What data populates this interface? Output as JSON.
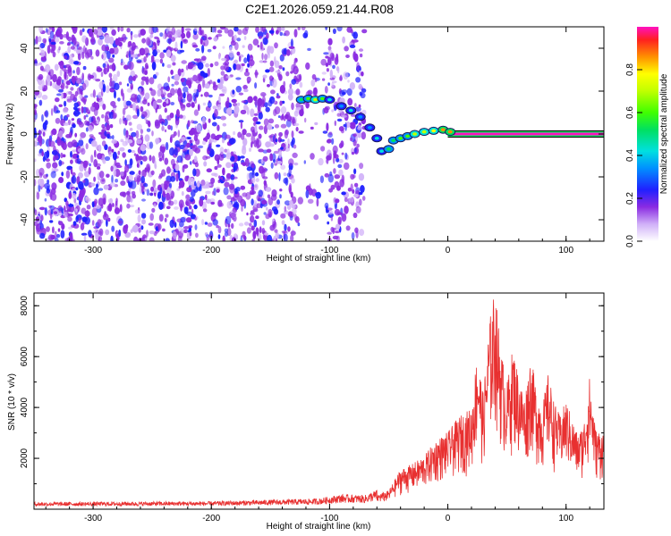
{
  "title": "C2E1.2026.059.21.44.R08",
  "chart_data": [
    {
      "type": "heatmap",
      "xlabel": "Height of straight line (km)",
      "ylabel": "Frequency (Hz)",
      "xlim": [
        -350,
        132
      ],
      "ylim": [
        -50,
        50
      ],
      "xticks": [
        -300,
        -200,
        -100,
        0,
        100
      ],
      "yticks": [
        -40,
        -20,
        0,
        20,
        40
      ],
      "colorbar": {
        "label": "Normalized spectral amplitude",
        "range": [
          0,
          1
        ],
        "ticks": [
          "0.0",
          "0.2",
          "0.4",
          "0.6",
          "0.8"
        ],
        "tick_values": [
          0,
          0.2,
          0.4,
          0.6,
          0.8
        ]
      },
      "signal_track": [
        {
          "x": -124,
          "y": 16,
          "amp": 0.45
        },
        {
          "x": -118,
          "y": 16.5,
          "amp": 0.55
        },
        {
          "x": -112,
          "y": 16,
          "amp": 0.7
        },
        {
          "x": -106,
          "y": 16.5,
          "amp": 0.6
        },
        {
          "x": -100,
          "y": 16,
          "amp": 0.4
        },
        {
          "x": -90,
          "y": 13,
          "amp": 0.3
        },
        {
          "x": -82,
          "y": 11,
          "amp": 0.35
        },
        {
          "x": -74,
          "y": 8,
          "amp": 0.3
        },
        {
          "x": -66,
          "y": 3,
          "amp": 0.3
        },
        {
          "x": -60,
          "y": -2,
          "amp": 0.35
        },
        {
          "x": -56,
          "y": -8,
          "amp": 0.4
        },
        {
          "x": -50,
          "y": -7,
          "amp": 0.45
        },
        {
          "x": -46,
          "y": -3,
          "amp": 0.5
        },
        {
          "x": -40,
          "y": -2,
          "amp": 0.55
        },
        {
          "x": -34,
          "y": -1,
          "amp": 0.6
        },
        {
          "x": -28,
          "y": 0,
          "amp": 0.65
        },
        {
          "x": -20,
          "y": 1,
          "amp": 0.7
        },
        {
          "x": -12,
          "y": 1.5,
          "amp": 0.75
        },
        {
          "x": -4,
          "y": 2,
          "amp": 0.8
        },
        {
          "x": 2,
          "y": 1,
          "amp": 0.85
        }
      ],
      "steady_line": {
        "x_start": 0,
        "x_end": 132,
        "y": 0,
        "amp": 1.0
      }
    },
    {
      "type": "line",
      "xlabel": "Height of straight line (km)",
      "ylabel": "SNR (10 * v/v)",
      "xlim": [
        -350,
        132
      ],
      "ylim": [
        0,
        8500
      ],
      "xticks": [
        -300,
        -200,
        -100,
        0,
        100
      ],
      "yticks": [
        2000,
        4000,
        6000,
        8000
      ],
      "color": "#e83030",
      "envelope": {
        "x": [
          -350,
          -200,
          -110,
          -90,
          -70,
          -50,
          -40,
          -30,
          -20,
          -10,
          0,
          10,
          20,
          25,
          30,
          35,
          40,
          45,
          50,
          55,
          60,
          65,
          70,
          75,
          80,
          85,
          90,
          95,
          100,
          105,
          110,
          115,
          120,
          125,
          132
        ],
        "y": [
          200,
          220,
          300,
          420,
          400,
          700,
          1500,
          1700,
          2000,
          2600,
          2900,
          3500,
          3800,
          6000,
          4300,
          7000,
          8300,
          6000,
          4700,
          6100,
          5000,
          4200,
          5800,
          4500,
          3900,
          5100,
          4000,
          3500,
          4100,
          3400,
          2800,
          3200,
          5000,
          3000,
          2900
        ]
      }
    }
  ]
}
